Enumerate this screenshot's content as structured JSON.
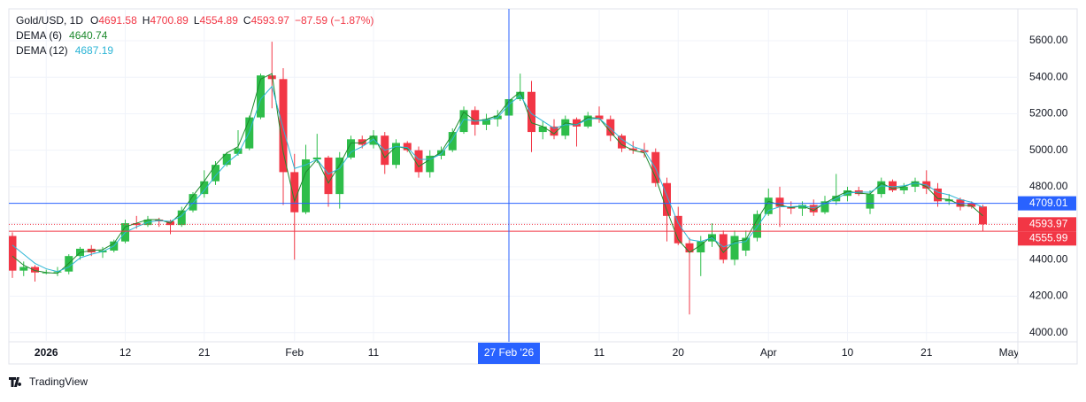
{
  "chart_data": {
    "type": "candlestick",
    "symbol": "Gold/USD, 1D",
    "ohlc_letters": [
      "O",
      "H",
      "L",
      "C"
    ],
    "change": "−87.59 (−1.87%)",
    "categories": [
      null,
      null,
      null,
      "2026",
      null,
      null,
      null,
      null,
      null,
      null,
      "12",
      null,
      null,
      null,
      null,
      null,
      null,
      "21",
      null,
      null,
      null,
      null,
      null,
      null,
      null,
      "Feb",
      null,
      null,
      null,
      null,
      null,
      null,
      "11",
      null,
      null,
      null,
      null,
      null,
      null,
      null,
      null,
      null,
      null,
      null,
      null,
      null,
      null,
      null,
      null,
      null,
      null,
      null,
      "11",
      null,
      null,
      null,
      null,
      null,
      null,
      "20",
      null,
      null,
      null,
      null,
      null,
      null,
      null,
      "Apr",
      null,
      null,
      null,
      null,
      null,
      null,
      "10",
      null,
      null,
      null,
      null,
      null,
      null,
      "21",
      null,
      null,
      null,
      null,
      null
    ],
    "future_x_label": "May",
    "open": [
      4530,
      4340,
      4360,
      4330,
      4330,
      4335,
      4420,
      4460,
      4440,
      4450,
      4500,
      4600,
      4590,
      4620,
      4610,
      4590,
      4670,
      4760,
      4830,
      4920,
      4980,
      5010,
      5180,
      5410,
      5390,
      4880,
      4660,
      4950,
      4960,
      4760,
      4960,
      5060,
      5030,
      5080,
      4920,
      5040,
      5000,
      4880,
      4970,
      5000,
      5100,
      5220,
      5140,
      5170,
      5190,
      5280,
      5320,
      5100,
      5130,
      5080,
      5170,
      5130,
      5190,
      5170,
      5080,
      5010,
      5000,
      4990,
      4820,
      4640,
      4490,
      4440,
      4500,
      4540,
      4400,
      4450,
      4520,
      4650,
      4740,
      4690,
      4680,
      4700,
      4660,
      4720,
      4750,
      4780,
      4680,
      4760,
      4830,
      4780,
      4800,
      4830,
      4790,
      4720,
      4730,
      4710,
      4691.58
    ],
    "high": [
      4550,
      4390,
      4370,
      4345,
      4360,
      4430,
      4470,
      4480,
      4470,
      4510,
      4620,
      4640,
      4640,
      4630,
      4620,
      4690,
      4770,
      4890,
      4940,
      4990,
      5110,
      5190,
      5420,
      5595,
      5450,
      4980,
      5030,
      5090,
      4970,
      4990,
      5080,
      5080,
      5110,
      5100,
      5060,
      5050,
      5020,
      5000,
      5020,
      5120,
      5240,
      5240,
      5200,
      5220,
      5290,
      5420,
      5380,
      5160,
      5170,
      5190,
      5180,
      5210,
      5240,
      5190,
      5090,
      5050,
      5040,
      5010,
      4850,
      4690,
      4520,
      4530,
      4600,
      4560,
      4560,
      4560,
      4670,
      4790,
      4800,
      4720,
      4720,
      4730,
      4750,
      4870,
      4800,
      4800,
      4780,
      4850,
      4840,
      4820,
      4850,
      4890,
      4820,
      4760,
      4740,
      4720,
      4700.89
    ],
    "low": [
      4300,
      4310,
      4280,
      4320,
      4310,
      4320,
      4400,
      4420,
      4410,
      4440,
      4490,
      4570,
      4580,
      4580,
      4540,
      4580,
      4660,
      4740,
      4810,
      4910,
      4970,
      5000,
      5170,
      5230,
      4700,
      4400,
      4650,
      4930,
      4690,
      4680,
      4950,
      5010,
      5010,
      4870,
      4900,
      4990,
      4850,
      4850,
      4950,
      4990,
      5090,
      5080,
      5110,
      5130,
      5160,
      5270,
      4990,
      5060,
      5060,
      5060,
      5020,
      5120,
      5150,
      5050,
      4990,
      4980,
      4960,
      4800,
      4500,
      4480,
      4100,
      4310,
      4470,
      4380,
      4370,
      4420,
      4500,
      4640,
      4580,
      4650,
      4640,
      4640,
      4650,
      4700,
      4720,
      4750,
      4650,
      4740,
      4770,
      4760,
      4770,
      4760,
      4690,
      4700,
      4670,
      4680,
      4554.89
    ],
    "close": [
      4340,
      4360,
      4330,
      4330,
      4335,
      4420,
      4460,
      4440,
      4450,
      4500,
      4600,
      4590,
      4620,
      4610,
      4590,
      4670,
      4760,
      4830,
      4920,
      4980,
      5010,
      5180,
      5410,
      5390,
      4880,
      4660,
      4950,
      4960,
      4760,
      4960,
      5060,
      5030,
      5080,
      4920,
      5040,
      5000,
      4880,
      4970,
      5000,
      5100,
      5220,
      5140,
      5170,
      5190,
      5280,
      5320,
      5100,
      5130,
      5080,
      5170,
      5130,
      5190,
      5170,
      5080,
      5010,
      5000,
      4990,
      4820,
      4640,
      4490,
      4440,
      4500,
      4540,
      4400,
      4530,
      4520,
      4650,
      4740,
      4690,
      4680,
      4700,
      4660,
      4720,
      4750,
      4780,
      4760,
      4760,
      4830,
      4780,
      4800,
      4830,
      4790,
      4720,
      4730,
      4690,
      4690,
      4593.97
    ],
    "up_color": "#2ebd4a",
    "down_color": "#f23645",
    "series": [
      {
        "name": "DEMA (6)",
        "color": "#1e8a2e",
        "values": [
          4420,
          4370,
          4340,
          4330,
          4325,
          4380,
          4440,
          4450,
          4455,
          4490,
          4580,
          4600,
          4620,
          4620,
          4600,
          4660,
          4750,
          4830,
          4920,
          4985,
          5020,
          5170,
          5390,
          5420,
          4990,
          4720,
          4880,
          4950,
          4820,
          4920,
          5040,
          5040,
          5080,
          4960,
          5020,
          5010,
          4910,
          4950,
          4990,
          5090,
          5210,
          5160,
          5170,
          5190,
          5270,
          5320,
          5150,
          5130,
          5090,
          5150,
          5140,
          5180,
          5175,
          5100,
          5030,
          5000,
          4985,
          4850,
          4670,
          4510,
          4440,
          4480,
          4530,
          4440,
          4500,
          4510,
          4620,
          4720,
          4700,
          4685,
          4695,
          4670,
          4710,
          4745,
          4775,
          4765,
          4760,
          4820,
          4790,
          4800,
          4825,
          4800,
          4735,
          4730,
          4700,
          4695,
          4640.74
        ]
      },
      {
        "name": "DEMA (12)",
        "color": "#2cb5d6",
        "values": [
          4480,
          4430,
          4380,
          4350,
          4335,
          4360,
          4410,
          4430,
          4445,
          4475,
          4550,
          4580,
          4605,
          4615,
          4610,
          4640,
          4710,
          4780,
          4860,
          4930,
          4980,
          5100,
          5280,
          5350,
          5120,
          4900,
          4920,
          4950,
          4870,
          4900,
          4990,
          5020,
          5060,
          5000,
          5020,
          5015,
          4950,
          4950,
          4980,
          5060,
          5170,
          5160,
          5165,
          5180,
          5250,
          5300,
          5200,
          5160,
          5120,
          5140,
          5140,
          5170,
          5175,
          5120,
          5060,
          5020,
          5000,
          4900,
          4750,
          4600,
          4510,
          4500,
          4520,
          4470,
          4490,
          4500,
          4580,
          4670,
          4690,
          4690,
          4695,
          4685,
          4705,
          4735,
          4765,
          4770,
          4770,
          4805,
          4800,
          4805,
          4820,
          4810,
          4770,
          4755,
          4730,
          4715,
          4687.19
        ]
      }
    ],
    "ylim": [
      3950,
      5775
    ],
    "yticks": [
      {
        "value": 4000,
        "label": "4000.00"
      },
      {
        "value": 4200,
        "label": "4200.00"
      },
      {
        "value": 4400,
        "label": "4400.00"
      },
      {
        "value": 4600,
        "label": "4600.00"
      },
      {
        "value": 4800,
        "label": "4800.00"
      },
      {
        "value": 5000,
        "label": "5000.00"
      },
      {
        "value": 5200,
        "label": "5200.00"
      },
      {
        "value": 5400,
        "label": "5400.00"
      },
      {
        "value": 5600,
        "label": "5600.00"
      }
    ],
    "grid": true,
    "crosshair": {
      "x_label": "27 Feb '26",
      "price": 4709.01,
      "color": "#2962ff"
    },
    "line_price": 4555.99,
    "brand": "TradingView"
  }
}
